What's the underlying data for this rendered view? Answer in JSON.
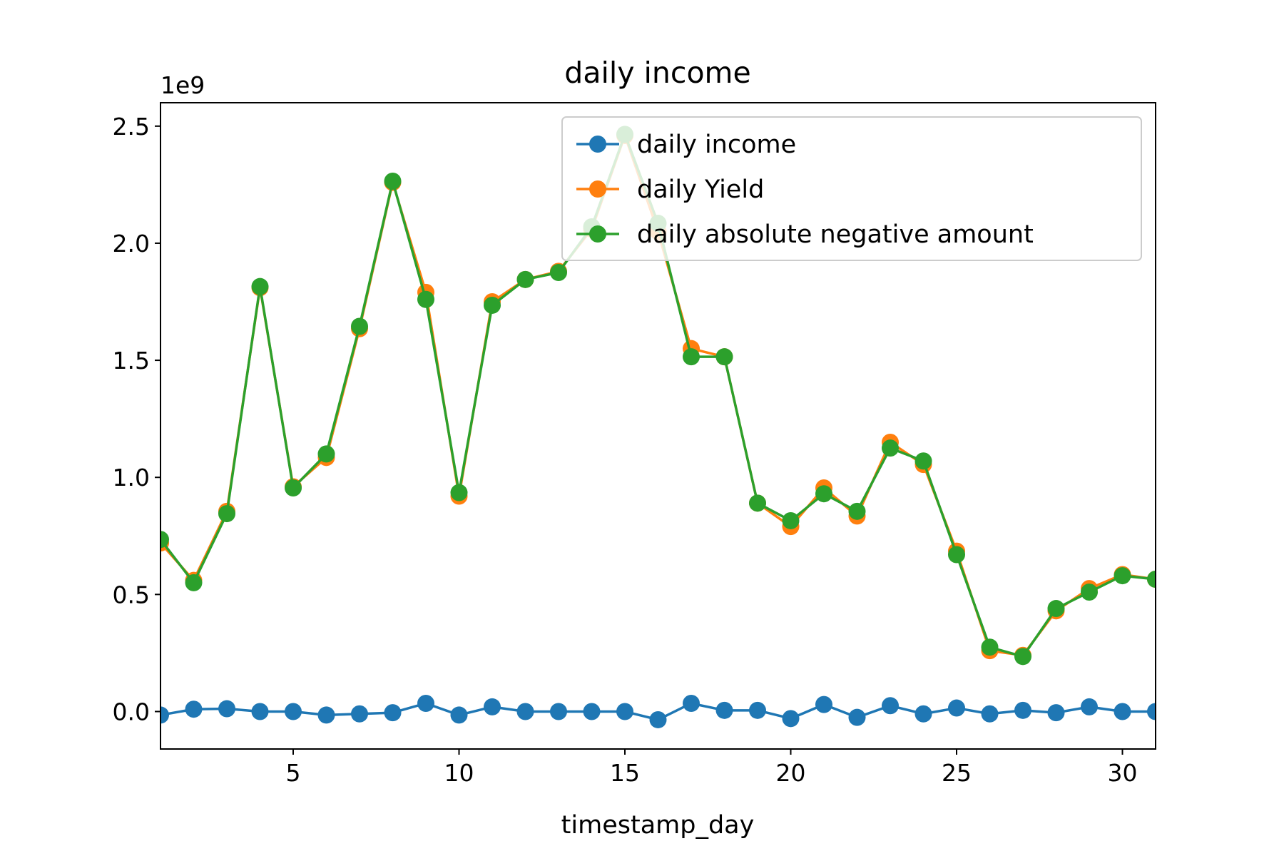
{
  "chart_data": {
    "type": "line",
    "title": "daily income",
    "xlabel": "timestamp_day",
    "ylabel": "",
    "y_offset_label": "1e9",
    "xlim": [
      1,
      31
    ],
    "ylim": [
      -0.16,
      2.6
    ],
    "x_ticks": [
      5,
      10,
      15,
      20,
      25,
      30
    ],
    "x_tick_labels": [
      "5",
      "10",
      "15",
      "20",
      "25",
      "30"
    ],
    "y_ticks": [
      0,
      0.5,
      1.0,
      1.5,
      2.0,
      2.5
    ],
    "y_tick_labels": [
      "0.0",
      "0.5",
      "1.0",
      "1.5",
      "2.0",
      "2.5"
    ],
    "y_scale_note": "values in units of 1e9",
    "grid": false,
    "legend_position": "top-right",
    "x": [
      1,
      2,
      3,
      4,
      5,
      6,
      7,
      8,
      9,
      10,
      11,
      12,
      13,
      14,
      15,
      16,
      17,
      18,
      19,
      20,
      21,
      22,
      23,
      24,
      25,
      26,
      27,
      28,
      29,
      30,
      31
    ],
    "series": [
      {
        "name": "daily income",
        "color": "#1f77b4",
        "values": [
          -0.015,
          0.01,
          0.012,
          0.0,
          0.0,
          -0.015,
          -0.01,
          -0.005,
          0.035,
          -0.015,
          0.02,
          0.0,
          0.0,
          0.0,
          0.0,
          -0.035,
          0.035,
          0.005,
          0.005,
          -0.03,
          0.03,
          -0.025,
          0.025,
          -0.01,
          0.015,
          -0.01,
          0.005,
          -0.005,
          0.02,
          0.0,
          0.0
        ]
      },
      {
        "name": "daily Yield",
        "color": "#ff7f0e",
        "values": [
          0.72,
          0.56,
          0.855,
          1.81,
          0.96,
          1.085,
          1.635,
          2.26,
          1.79,
          0.92,
          1.75,
          1.845,
          1.88,
          2.06,
          2.46,
          2.05,
          1.55,
          1.515,
          0.89,
          0.79,
          0.955,
          0.835,
          1.15,
          1.055,
          0.685,
          0.26,
          0.24,
          0.43,
          0.525,
          0.585,
          0.565
        ]
      },
      {
        "name": "daily absolute negative amount",
        "color": "#2ca02c",
        "values": [
          0.735,
          0.55,
          0.845,
          1.815,
          0.955,
          1.1,
          1.645,
          2.265,
          1.76,
          0.935,
          1.735,
          1.845,
          1.875,
          2.07,
          2.465,
          2.085,
          1.515,
          1.515,
          0.89,
          0.815,
          0.93,
          0.855,
          1.125,
          1.07,
          0.67,
          0.275,
          0.235,
          0.44,
          0.51,
          0.58,
          0.565
        ]
      }
    ]
  }
}
